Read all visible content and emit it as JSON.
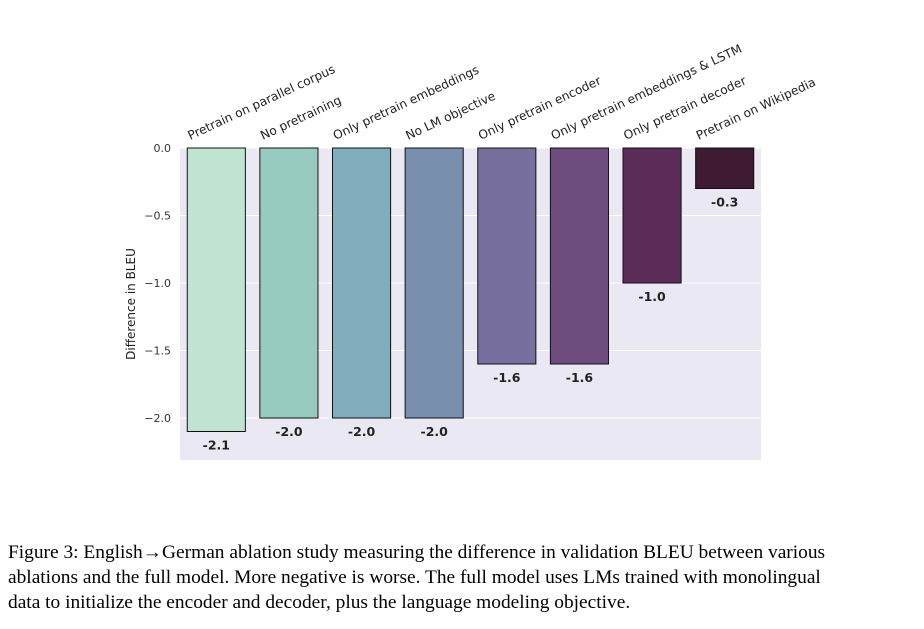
{
  "chart_data": {
    "type": "bar",
    "title": "",
    "xlabel": "",
    "ylabel": "Difference in BLEU",
    "ylim": [
      -2.23,
      0
    ],
    "yticks": [
      0.0,
      -0.5,
      -1.0,
      -1.5,
      -2.0
    ],
    "ytick_labels": [
      "0.0",
      "−0.5",
      "−1.0",
      "−1.5",
      "−2.0"
    ],
    "grid": true,
    "categories": [
      "Pretrain on parallel corpus",
      "No pretraining",
      "Only pretrain embeddings",
      "No LM objective",
      "Only pretrain encoder",
      "Only pretrain embeddings & LSTM",
      "Only pretrain decoder",
      "Pretrain on Wikipedia"
    ],
    "values": [
      -2.1,
      -2.0,
      -2.0,
      -2.0,
      -1.6,
      -1.6,
      -1.0,
      -0.3
    ],
    "value_labels": [
      "-2.1",
      "-2.0",
      "-2.0",
      "-2.0",
      "-1.6",
      "-1.6",
      "-1.0",
      "-0.3"
    ],
    "colors": [
      "#c0e4d2",
      "#97cbc0",
      "#80aebc",
      "#7890ad",
      "#776f9e",
      "#6d4d7d",
      "#5c2d58",
      "#3e1b31"
    ],
    "background": "#eae8f2"
  },
  "caption": {
    "lines": [
      "Figure 3: English→German ablation study measuring the difference in validation BLEU between various",
      "ablations and the full model. More negative is worse. The full model uses LMs trained with monolingual",
      "data to initialize the encoder and decoder, plus the language modeling objective."
    ]
  }
}
